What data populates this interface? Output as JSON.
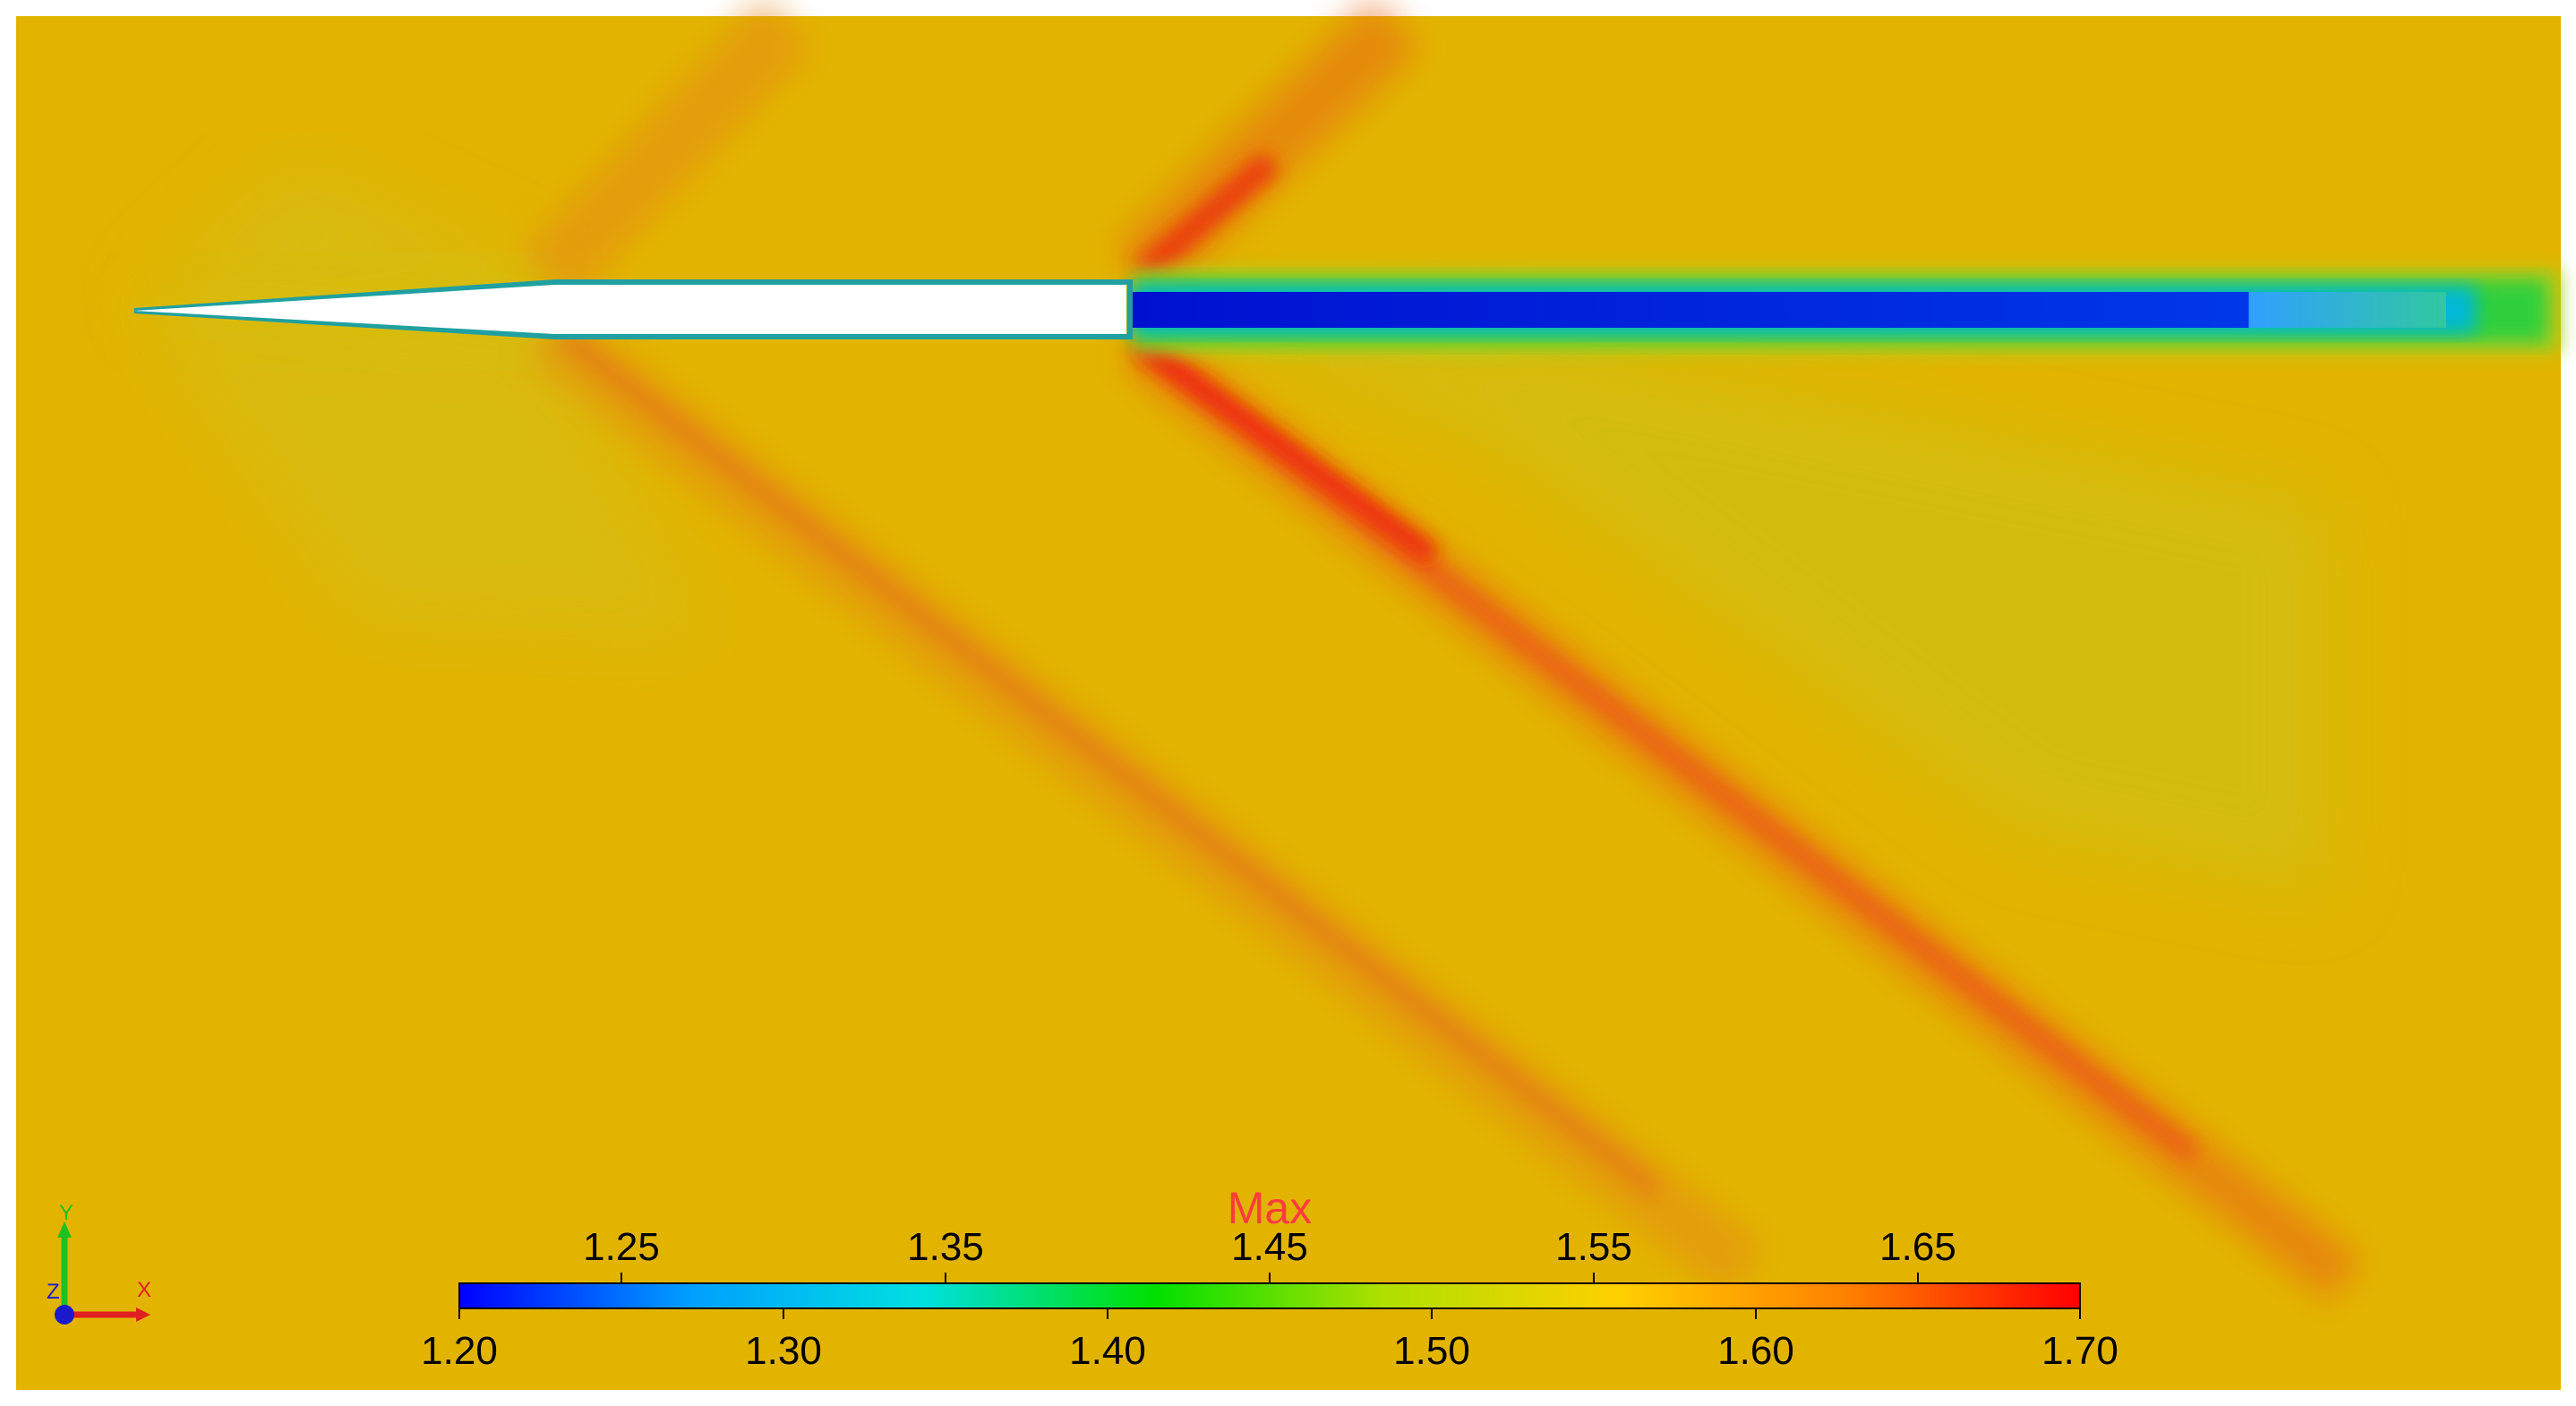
{
  "colors": {
    "background_field": "#e2b400",
    "body": "#ffffff",
    "wake_core": "#0016d6",
    "shock_strong": "#ee2a10",
    "expansion": "#c9c419",
    "max_label": "#ff3c3c",
    "axis_x": "#e02020",
    "axis_y": "#20c020",
    "axis_z": "#1a1acc"
  },
  "chart_data": {
    "type": "heatmap",
    "title": "",
    "legend": {
      "label": "Max",
      "range": [
        1.2,
        1.7
      ],
      "top_ticks": [
        "1.25",
        "1.35",
        "1.45",
        "1.55",
        "1.65"
      ],
      "top_tick_values": [
        1.25,
        1.35,
        1.45,
        1.55,
        1.65
      ],
      "bottom_ticks": [
        "1.20",
        "1.30",
        "1.40",
        "1.50",
        "1.60",
        "1.70"
      ],
      "bottom_tick_values": [
        1.2,
        1.3,
        1.4,
        1.5,
        1.6,
        1.7
      ],
      "colormap": [
        "#0000ff",
        "#00a0ff",
        "#00e0e0",
        "#00e000",
        "#b0e000",
        "#ffd000",
        "#ff8000",
        "#ff0000"
      ],
      "placement": "bottom-center"
    },
    "triad": {
      "x_label": "X",
      "y_label": "Y",
      "z_label": "Z"
    }
  }
}
